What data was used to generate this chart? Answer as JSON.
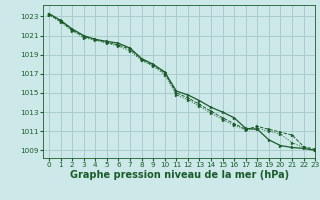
{
  "bg_color": "#cce8e8",
  "grid_color": "#aacccc",
  "line_color": "#1a5c2a",
  "xlabel": "Graphe pression niveau de la mer (hPa)",
  "xlabel_fontsize": 7.0,
  "ylim": [
    1008.2,
    1024.2
  ],
  "xlim": [
    -0.5,
    23
  ],
  "yticks": [
    1009,
    1011,
    1013,
    1015,
    1017,
    1019,
    1021,
    1023
  ],
  "xticks": [
    0,
    1,
    2,
    3,
    4,
    5,
    6,
    7,
    8,
    9,
    10,
    11,
    12,
    13,
    14,
    15,
    16,
    17,
    18,
    19,
    20,
    21,
    22,
    23
  ],
  "series1": [
    1023.3,
    1022.6,
    1021.7,
    1021.0,
    1020.6,
    1020.4,
    1020.2,
    1019.7,
    1018.6,
    1018.0,
    1017.2,
    1015.2,
    1014.8,
    1014.2,
    1013.5,
    1013.0,
    1012.4,
    1011.3,
    1011.2,
    1010.1,
    1009.5,
    1009.3,
    1009.2,
    1009.0
  ],
  "series2": [
    1023.2,
    1022.5,
    1021.6,
    1020.9,
    1020.6,
    1020.3,
    1020.0,
    1019.6,
    1018.5,
    1017.9,
    1017.1,
    1015.0,
    1014.5,
    1013.8,
    1013.1,
    1012.4,
    1011.8,
    1011.2,
    1011.5,
    1011.2,
    1010.9,
    1010.6,
    1009.4,
    1009.1
  ],
  "series3": [
    1023.2,
    1022.4,
    1021.5,
    1020.8,
    1020.5,
    1020.2,
    1019.9,
    1019.4,
    1018.4,
    1017.8,
    1016.9,
    1014.8,
    1014.3,
    1013.6,
    1012.9,
    1012.2,
    1011.6,
    1011.1,
    1011.3,
    1011.0,
    1010.7,
    1009.8,
    1009.3,
    1009.0
  ]
}
